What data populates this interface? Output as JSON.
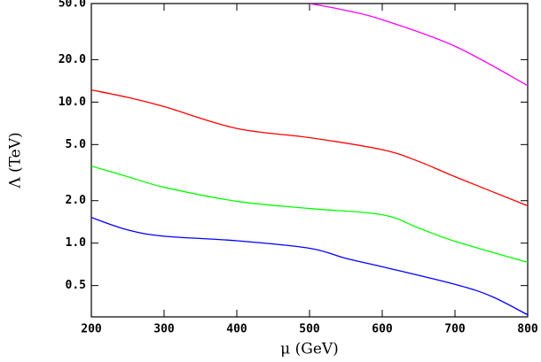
{
  "chart_data": {
    "type": "line",
    "x_label": "μ (GeV)",
    "y_label": "Λ (TeV)",
    "log_y": true,
    "xlim": [
      200,
      800
    ],
    "xticks": [
      200,
      300,
      400,
      500,
      600,
      700,
      800
    ],
    "ylim": [
      0.3,
      50
    ],
    "yticks": [
      {
        "value": 0.5,
        "label": "0.5"
      },
      {
        "value": 1,
        "label": "1.0"
      },
      {
        "value": 2,
        "label": "2.0"
      },
      {
        "value": 5,
        "label": "5.0"
      },
      {
        "value": 10,
        "label": "10.0"
      },
      {
        "value": 20,
        "label": "20.0"
      },
      {
        "value": 50,
        "label": "50.0"
      }
    ],
    "series": [
      {
        "color": "#ff00ff",
        "x": [
          500,
          550,
          600,
          700,
          800
        ],
        "values": [
          50,
          44.7,
          38.4,
          24.9,
          13.1
        ]
      },
      {
        "color": "#ff0000",
        "x": [
          200,
          250,
          300,
          400,
          500,
          600,
          650,
          700,
          800
        ],
        "values": [
          12.2,
          10.8,
          9.3,
          6.5,
          5.6,
          4.6,
          3.8,
          2.96,
          1.84
        ]
      },
      {
        "color": "#00ff00",
        "x": [
          200,
          250,
          300,
          400,
          500,
          600,
          650,
          700,
          800
        ],
        "values": [
          3.52,
          2.96,
          2.49,
          1.98,
          1.76,
          1.59,
          1.28,
          1.03,
          0.73
        ]
      },
      {
        "color": "#0000ff",
        "x": [
          200,
          250,
          300,
          400,
          500,
          550,
          600,
          700,
          750,
          800
        ],
        "values": [
          1.52,
          1.24,
          1.12,
          1.04,
          0.92,
          0.78,
          0.68,
          0.51,
          0.42,
          0.31
        ]
      }
    ]
  }
}
